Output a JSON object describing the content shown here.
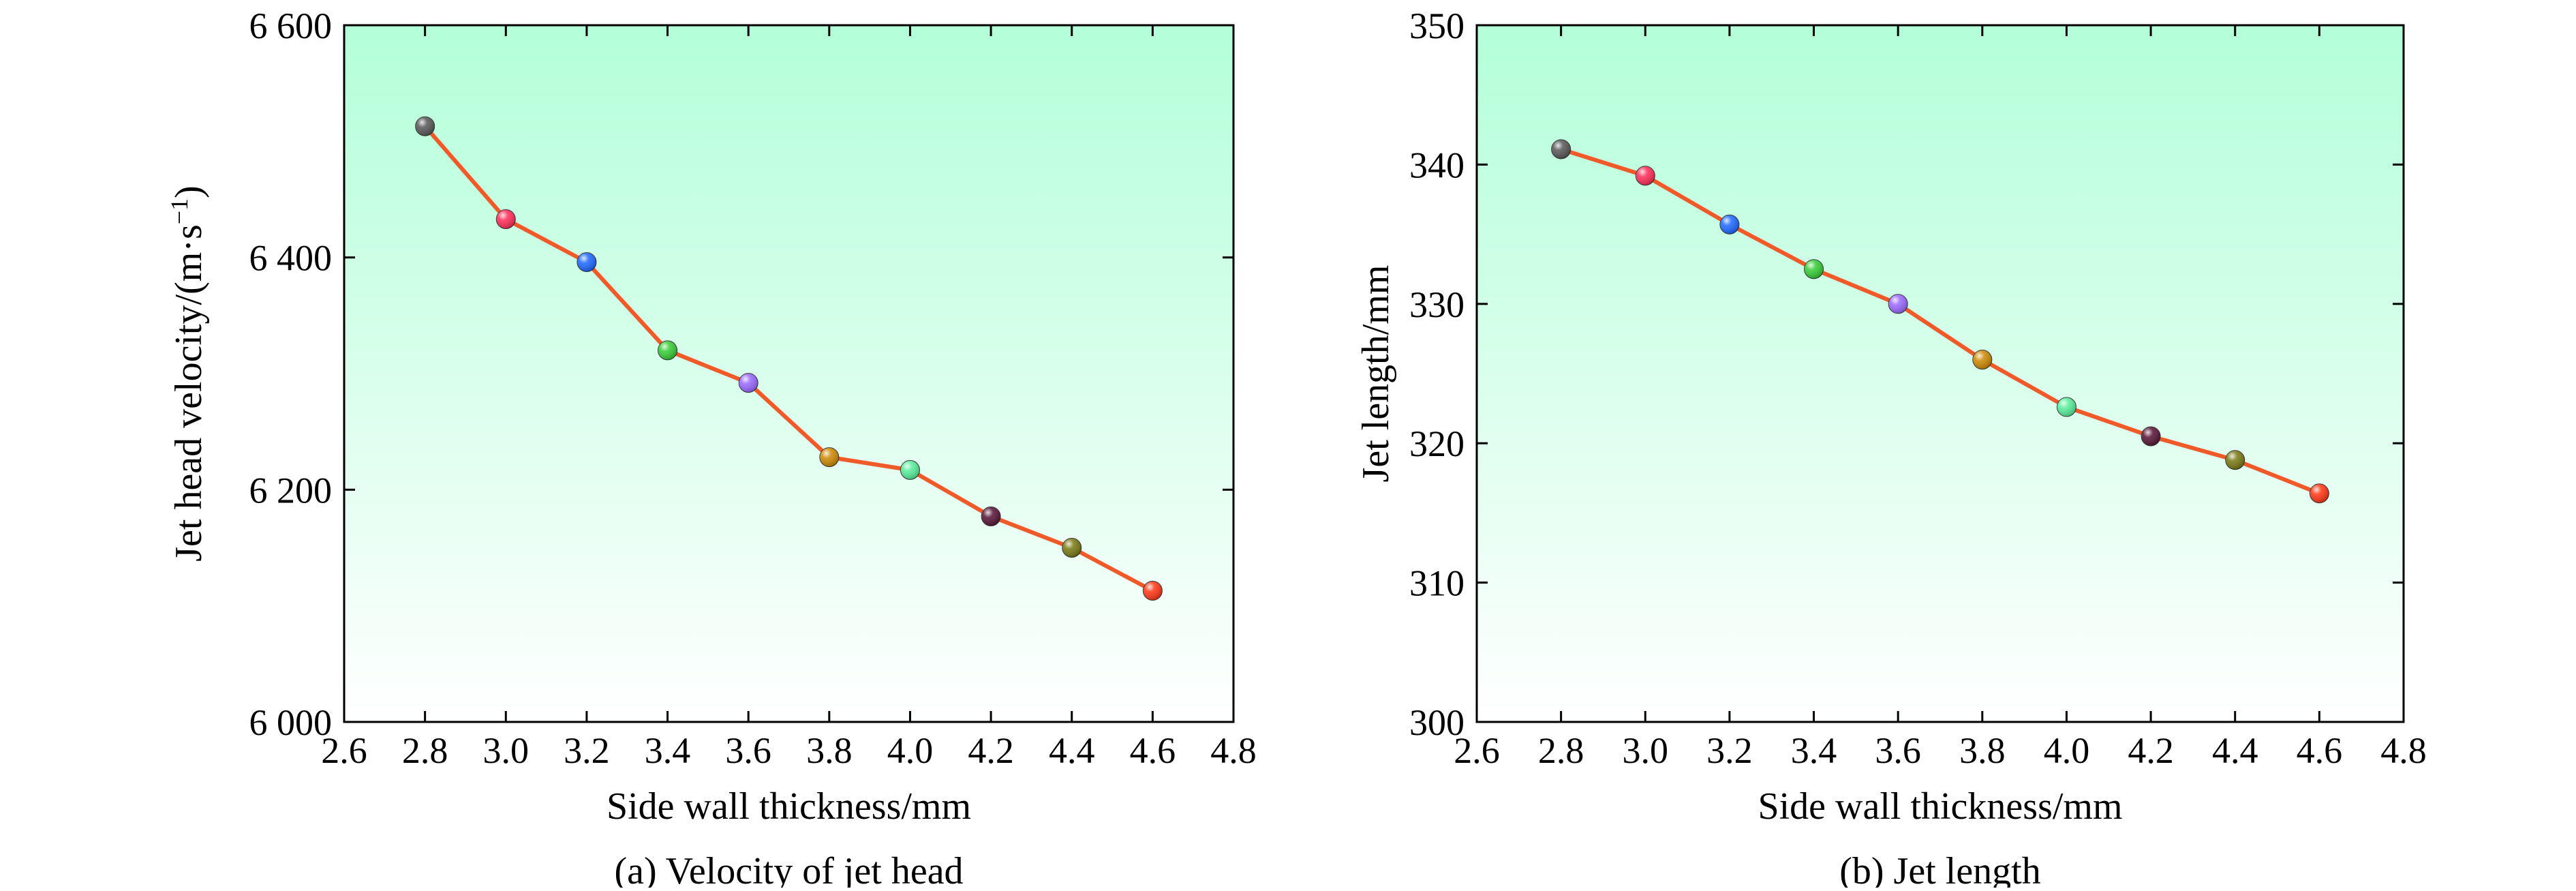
{
  "chart_data": [
    {
      "type": "line",
      "title": "",
      "caption": "(a) Velocity of jet head",
      "xlabel": "Side wall thickness/mm",
      "ylabel_main": "Jet head velocity/(m·s",
      "ylabel_sup": "−1",
      "ylabel_end": ")",
      "xlim": [
        2.6,
        4.8
      ],
      "ylim": [
        6000,
        6600
      ],
      "xticks": [
        2.6,
        2.8,
        3.0,
        3.2,
        3.4,
        3.6,
        3.8,
        4.0,
        4.2,
        4.4,
        4.6,
        4.8
      ],
      "xtick_labels": [
        "2.6",
        "2.8",
        "3.0",
        "3.2",
        "3.4",
        "3.6",
        "3.8",
        "4.0",
        "4.2",
        "4.4",
        "4.6",
        "4.8"
      ],
      "yticks": [
        6000,
        6200,
        6400,
        6600
      ],
      "ytick_labels": [
        "6 000",
        "6 200",
        "6 400",
        "6 600"
      ],
      "x": [
        2.8,
        3.0,
        3.2,
        3.4,
        3.6,
        3.8,
        4.0,
        4.2,
        4.4,
        4.6
      ],
      "y": [
        6513,
        6433,
        6396,
        6320,
        6292,
        6228,
        6217,
        6177,
        6150,
        6113
      ],
      "line_color": "#f05a28",
      "marker_colors": [
        "#555555",
        "#ff2a55",
        "#1a66ff",
        "#33cc33",
        "#9966ff",
        "#cc8800",
        "#55ee99",
        "#551133",
        "#777711",
        "#ff3311"
      ],
      "background_gradient": [
        "#b3ffd9",
        "#ffffff"
      ]
    },
    {
      "type": "line",
      "title": "",
      "caption": "(b) Jet length",
      "xlabel": "Side wall thickness/mm",
      "ylabel": "Jet length/mm",
      "xlim": [
        2.6,
        4.8
      ],
      "ylim": [
        300,
        350
      ],
      "xticks": [
        2.6,
        2.8,
        3.0,
        3.2,
        3.4,
        3.6,
        3.8,
        4.0,
        4.2,
        4.4,
        4.6,
        4.8
      ],
      "xtick_labels": [
        "2.6",
        "2.8",
        "3.0",
        "3.2",
        "3.4",
        "3.6",
        "3.8",
        "4.0",
        "4.2",
        "4.4",
        "4.6",
        "4.8"
      ],
      "yticks": [
        300,
        310,
        320,
        330,
        340,
        350
      ],
      "ytick_labels": [
        "300",
        "310",
        "320",
        "330",
        "340",
        "350"
      ],
      "x": [
        2.8,
        3.0,
        3.2,
        3.4,
        3.6,
        3.8,
        4.0,
        4.2,
        4.4,
        4.6
      ],
      "y": [
        341.1,
        339.2,
        335.7,
        332.5,
        330.0,
        326.0,
        322.6,
        320.5,
        318.8,
        316.4
      ],
      "line_color": "#f05a28",
      "marker_colors": [
        "#555555",
        "#ff2a55",
        "#1a66ff",
        "#33cc33",
        "#9966ff",
        "#cc8800",
        "#55ee99",
        "#551133",
        "#777711",
        "#ff3311"
      ],
      "background_gradient": [
        "#b3ffd9",
        "#ffffff"
      ]
    }
  ]
}
